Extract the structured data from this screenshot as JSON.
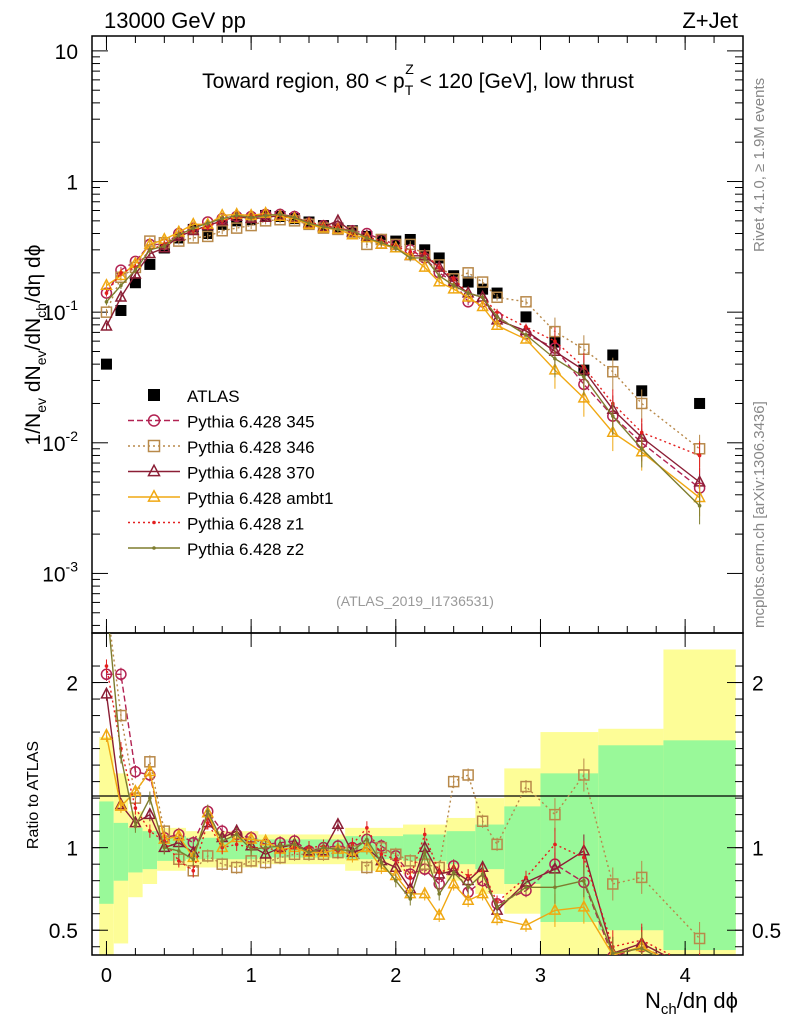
{
  "header": {
    "left": "13000 GeV pp",
    "right": "Z+Jet",
    "side_rivet": "Rivet 4.1.0, ≥ 1.9M events",
    "side_mcplots": "mcplots.cern.ch [arXiv:1306.3436]",
    "analysis_id": "(ATLAS_2019_I1736531)"
  },
  "panel_title": {
    "pre": "Toward region, 80 < p",
    "sup": "Z",
    "sub": "T",
    "post": " < 120 [GeV], low thrust"
  },
  "axes": {
    "ylabel_top": "1/N_ev dN_ev/dN_ch/dη dϕ",
    "ylabel_top_parts": [
      "1/N",
      "ev",
      " dN",
      "ev",
      "/dN",
      "ch",
      "/dη dϕ"
    ],
    "ylabel_ratio": "Ratio to ATLAS",
    "xlabel_parts": [
      "N",
      "ch",
      "/dη dϕ"
    ],
    "x_ticks": [
      "0",
      "1",
      "2",
      "3",
      "4"
    ],
    "y_ticks_top": [
      {
        "base": "10",
        "exp": "-3",
        "value": 0.001
      },
      {
        "base": "10",
        "exp": "-2",
        "value": 0.01
      },
      {
        "base": "10",
        "exp": "-1",
        "value": 0.1
      },
      {
        "base": "1",
        "exp": "",
        "value": 1
      },
      {
        "base": "10",
        "exp": "",
        "value": 10
      }
    ],
    "y_ticks_ratio": [
      "0.5",
      "1",
      "2"
    ]
  },
  "chart_data": {
    "type": "scatter",
    "xlim": [
      -0.1,
      4.4
    ],
    "ylim_top": [
      0.00035,
      13
    ],
    "ylim_ratio": [
      0.35,
      2.3
    ],
    "y_scale_top": "log",
    "legend_position": "middle-left",
    "x": [
      0.0,
      0.1,
      0.2,
      0.3,
      0.4,
      0.5,
      0.6,
      0.7,
      0.8,
      0.9,
      1.0,
      1.1,
      1.2,
      1.3,
      1.4,
      1.5,
      1.6,
      1.7,
      1.8,
      1.9,
      2.0,
      2.1,
      2.2,
      2.3,
      2.4,
      2.5,
      2.6,
      2.7,
      2.9,
      3.1,
      3.3,
      3.5,
      3.7,
      4.1
    ],
    "ratio_bands": [
      {
        "x0": -0.05,
        "x1": 0.05,
        "inner": [
          0.66,
          1.28
        ],
        "outer": [
          0.35,
          1.67
        ]
      },
      {
        "x0": 0.05,
        "x1": 0.15,
        "inner": [
          0.8,
          1.15
        ],
        "outer": [
          0.42,
          1.45
        ]
      },
      {
        "x0": 0.15,
        "x1": 0.25,
        "inner": [
          0.85,
          1.12
        ],
        "outer": [
          0.7,
          1.22
        ]
      },
      {
        "x0": 0.25,
        "x1": 0.35,
        "inner": [
          0.87,
          1.1
        ],
        "outer": [
          0.78,
          1.18
        ]
      },
      {
        "x0": 0.35,
        "x1": 0.55,
        "inner": [
          0.92,
          1.07
        ],
        "outer": [
          0.86,
          1.12
        ]
      },
      {
        "x0": 0.55,
        "x1": 1.05,
        "inner": [
          0.93,
          1.06
        ],
        "outer": [
          0.88,
          1.1
        ]
      },
      {
        "x0": 1.05,
        "x1": 1.65,
        "inner": [
          0.94,
          1.05
        ],
        "outer": [
          0.9,
          1.08
        ]
      },
      {
        "x0": 1.65,
        "x1": 2.05,
        "inner": [
          0.93,
          1.07
        ],
        "outer": [
          0.86,
          1.12
        ]
      },
      {
        "x0": 2.05,
        "x1": 2.35,
        "inner": [
          0.92,
          1.08
        ],
        "outer": [
          0.84,
          1.14
        ]
      },
      {
        "x0": 2.35,
        "x1": 2.55,
        "inner": [
          0.9,
          1.1
        ],
        "outer": [
          0.8,
          1.18
        ]
      },
      {
        "x0": 2.55,
        "x1": 2.75,
        "inner": [
          0.87,
          1.14
        ],
        "outer": [
          0.72,
          1.3
        ]
      },
      {
        "x0": 2.75,
        "x1": 3.0,
        "inner": [
          0.78,
          1.25
        ],
        "outer": [
          0.6,
          1.48
        ]
      },
      {
        "x0": 3.0,
        "x1": 3.4,
        "inner": [
          0.55,
          1.45
        ],
        "outer": [
          0.35,
          1.7
        ]
      },
      {
        "x0": 3.4,
        "x1": 3.85,
        "inner": [
          0.5,
          1.62
        ],
        "outer": [
          0.35,
          1.72
        ]
      },
      {
        "x0": 3.85,
        "x1": 4.35,
        "inner": [
          0.38,
          1.65
        ],
        "outer": [
          0.35,
          2.2
        ]
      }
    ],
    "series": [
      {
        "name": "ATLAS",
        "label": "ATLAS",
        "color": "#000000",
        "style": "data",
        "values": [
          0.04,
          0.103,
          0.168,
          0.232,
          0.31,
          0.37,
          0.43,
          0.4,
          0.47,
          0.5,
          0.51,
          0.55,
          0.54,
          0.52,
          0.49,
          0.46,
          0.44,
          0.42,
          0.38,
          0.36,
          0.35,
          0.36,
          0.3,
          0.26,
          0.19,
          0.17,
          0.15,
          0.14,
          0.092,
          0.059,
          0.036,
          0.047,
          0.025,
          0.02
        ]
      },
      {
        "name": "p345",
        "label": "Pythia 6.428 345",
        "color": "#b22252",
        "style": "circle-dashed",
        "values": [
          0.14,
          0.21,
          0.245,
          0.33,
          0.33,
          0.4,
          0.44,
          0.49,
          0.52,
          0.54,
          0.54,
          0.56,
          0.56,
          0.54,
          0.48,
          0.46,
          0.44,
          0.42,
          0.4,
          0.36,
          0.33,
          0.3,
          0.26,
          0.2,
          0.17,
          0.12,
          0.12,
          0.092,
          0.068,
          0.053,
          0.028,
          0.016,
          0.01,
          0.0045
        ],
        "ratios": [
          2.05,
          2.05,
          1.46,
          1.44,
          1.06,
          1.08,
          1.03,
          1.22,
          1.1,
          1.08,
          1.06,
          1.02,
          1.03,
          1.04,
          0.98,
          1.0,
          1.01,
          1.0,
          1.05,
          1.01,
          0.95,
          0.84,
          0.87,
          0.78,
          0.89,
          0.73,
          0.8,
          0.66,
          0.74,
          0.9,
          0.79,
          0.34,
          0.4,
          0.23
        ]
      },
      {
        "name": "p346",
        "label": "Pythia 6.428 346",
        "color": "#b8894a",
        "style": "square-dotted",
        "values": [
          0.1,
          0.185,
          0.22,
          0.35,
          0.34,
          0.35,
          0.37,
          0.38,
          0.42,
          0.44,
          0.46,
          0.5,
          0.51,
          0.5,
          0.47,
          0.44,
          0.43,
          0.41,
          0.33,
          0.36,
          0.33,
          0.33,
          0.27,
          0.23,
          0.18,
          0.2,
          0.17,
          0.13,
          0.12,
          0.071,
          0.052,
          0.035,
          0.02,
          0.009
        ],
        "ratios": [
          2.5,
          1.8,
          1.3,
          1.52,
          1.1,
          0.93,
          0.86,
          0.95,
          0.9,
          0.88,
          0.92,
          0.91,
          0.94,
          0.96,
          0.96,
          0.96,
          0.97,
          0.98,
          0.88,
          1.0,
          0.96,
          0.92,
          0.9,
          0.88,
          1.4,
          1.44,
          1.16,
          1.02,
          1.37,
          1.2,
          1.44,
          0.78,
          0.82,
          0.45
        ]
      },
      {
        "name": "p370",
        "label": "Pythia 6.428 370",
        "color": "#8b1e35",
        "style": "triangle-solid",
        "values": [
          0.078,
          0.13,
          0.195,
          0.28,
          0.31,
          0.38,
          0.42,
          0.46,
          0.5,
          0.54,
          0.52,
          0.53,
          0.55,
          0.53,
          0.48,
          0.45,
          0.5,
          0.41,
          0.38,
          0.33,
          0.31,
          0.27,
          0.27,
          0.22,
          0.17,
          0.14,
          0.13,
          0.087,
          0.072,
          0.05,
          0.036,
          0.018,
          0.011,
          0.005
        ],
        "ratios": [
          1.93,
          1.26,
          1.15,
          1.2,
          1.0,
          1.03,
          0.97,
          1.15,
          1.06,
          1.1,
          1.01,
          0.96,
          1.0,
          1.02,
          0.98,
          0.98,
          1.14,
          0.97,
          1.0,
          0.92,
          0.88,
          0.75,
          1.0,
          0.84,
          0.86,
          0.8,
          0.88,
          0.62,
          0.79,
          0.87,
          0.98,
          0.36,
          0.42,
          0.24
        ]
      },
      {
        "name": "ambt1",
        "label": "Pythia 6.428 ambt1",
        "color": "#f0a812",
        "style": "triangle-solid",
        "values": [
          0.16,
          0.19,
          0.235,
          0.33,
          0.36,
          0.41,
          0.47,
          0.47,
          0.55,
          0.56,
          0.55,
          0.57,
          0.54,
          0.52,
          0.47,
          0.44,
          0.43,
          0.39,
          0.37,
          0.33,
          0.31,
          0.27,
          0.22,
          0.17,
          0.15,
          0.13,
          0.11,
          0.079,
          0.062,
          0.036,
          0.022,
          0.012,
          0.0085,
          0.0038
        ],
        "ratios": [
          1.68,
          1.25,
          1.34,
          1.46,
          1.05,
          1.07,
          0.94,
          1.21,
          1.0,
          1.06,
          1.05,
          1.04,
          0.99,
          1.0,
          0.97,
          0.97,
          0.99,
          0.95,
          1.0,
          0.88,
          0.83,
          0.72,
          0.72,
          0.59,
          0.78,
          0.68,
          0.72,
          0.57,
          0.53,
          0.62,
          0.64,
          0.35,
          0.4,
          0.22
        ]
      },
      {
        "name": "z1",
        "label": "Pythia 6.428 z1",
        "color": "#e31f1f",
        "style": "dot-dotted",
        "values": [
          0.14,
          0.2,
          0.22,
          0.3,
          0.33,
          0.39,
          0.42,
          0.45,
          0.5,
          0.53,
          0.54,
          0.56,
          0.55,
          0.53,
          0.49,
          0.46,
          0.45,
          0.41,
          0.38,
          0.35,
          0.32,
          0.29,
          0.28,
          0.22,
          0.18,
          0.14,
          0.13,
          0.1,
          0.077,
          0.06,
          0.038,
          0.02,
          0.012,
          0.008
        ],
        "ratios": [
          2.1,
          1.6,
          1.24,
          1.1,
          1.04,
          0.92,
          0.86,
          1.15,
          1.0,
          1.02,
          1.0,
          1.0,
          0.98,
          1.0,
          1.0,
          1.01,
          0.98,
          1.02,
          1.12,
          0.96,
          0.93,
          0.82,
          1.08,
          0.85,
          0.88,
          0.83,
          0.86,
          0.67,
          0.82,
          1.02,
          0.94,
          0.4,
          0.44,
          0.26
        ]
      },
      {
        "name": "z2",
        "label": "Pythia 6.428 z2",
        "color": "#7e7d2f",
        "style": "dot-solid",
        "values": [
          0.12,
          0.16,
          0.21,
          0.3,
          0.32,
          0.39,
          0.44,
          0.48,
          0.52,
          0.55,
          0.53,
          0.55,
          0.56,
          0.53,
          0.48,
          0.45,
          0.43,
          0.42,
          0.37,
          0.34,
          0.31,
          0.26,
          0.26,
          0.19,
          0.16,
          0.14,
          0.13,
          0.092,
          0.067,
          0.044,
          0.032,
          0.016,
          0.009,
          0.0033
        ],
        "ratios": [
          2.5,
          1.55,
          1.13,
          1.3,
          1.0,
          0.98,
          0.93,
          1.22,
          1.04,
          1.08,
          0.99,
          1.0,
          1.01,
          1.02,
          0.97,
          1.0,
          0.99,
          0.98,
          1.05,
          0.91,
          0.8,
          0.69,
          0.97,
          0.72,
          0.85,
          0.76,
          0.84,
          0.64,
          0.76,
          0.76,
          0.8,
          0.36,
          0.39,
          0.2
        ]
      }
    ]
  }
}
